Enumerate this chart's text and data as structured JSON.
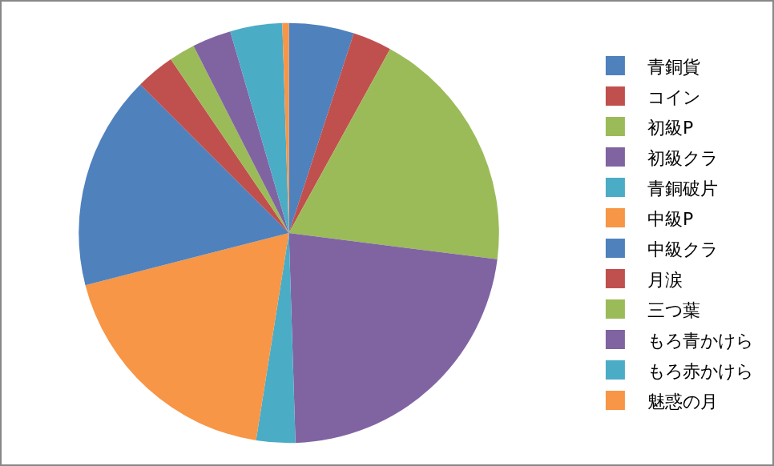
{
  "chart_data": {
    "type": "pie",
    "categories": [
      "青銅貨",
      "コイン",
      "初級P",
      "初級クラ",
      "青銅破片",
      "中級P",
      "中級クラ",
      "月涙",
      "三つ葉",
      "もろ青かけら",
      "もろ赤かけら",
      "魅惑の月"
    ],
    "values": [
      5,
      3,
      19,
      22.5,
      3,
      18.5,
      16.5,
      3,
      2,
      3,
      4,
      0.5
    ],
    "colors": [
      "#4f81bd",
      "#c0504d",
      "#9bbb59",
      "#8064a2",
      "#4bacc6",
      "#f79646",
      "#4f81bd",
      "#c0504d",
      "#9bbb59",
      "#8064a2",
      "#4bacc6",
      "#f79646"
    ],
    "legend": "right"
  }
}
